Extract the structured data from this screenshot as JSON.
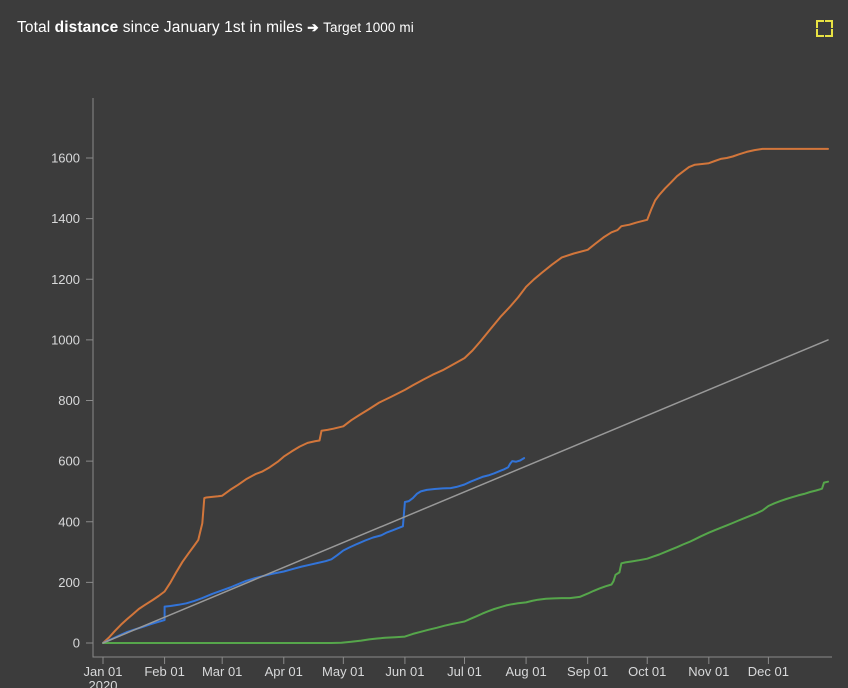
{
  "header": {
    "title_prefix": "Total",
    "title_bold": "distance",
    "title_rest": "since January 1st in miles",
    "arrow": "➔",
    "target_label": "Target 1000 mi",
    "fullscreen_icon": "corner-brackets",
    "fullscreen_icon_color": "#e8e243"
  },
  "colors": {
    "panel_background": "#3c3c3c",
    "axis_line": "#8a8a8a",
    "tick_text": "#d8d9da",
    "title_text": "#ffffff"
  },
  "chart_data": {
    "type": "line",
    "title": "Total distance since January 1st in miles ➔ Target 1000 mi",
    "xlabel": "",
    "ylabel": "",
    "grid": false,
    "legend": "none",
    "x_unit": "day of year 2020",
    "xlim": [
      0,
      365
    ],
    "ylim": [
      0,
      1800
    ],
    "y_ticks": [
      0,
      200,
      400,
      600,
      800,
      1000,
      1200,
      1400,
      1600
    ],
    "x_ticks": [
      {
        "label": "Jan 01",
        "sublabel": "2020",
        "day": 0
      },
      {
        "label": "Feb 01",
        "day": 31
      },
      {
        "label": "Mar 01",
        "day": 60
      },
      {
        "label": "Apr 01",
        "day": 91
      },
      {
        "label": "May 01",
        "day": 121
      },
      {
        "label": "Jun 01",
        "day": 152
      },
      {
        "label": "Jul 01",
        "day": 182
      },
      {
        "label": "Aug 01",
        "day": 213
      },
      {
        "label": "Sep 01",
        "day": 244
      },
      {
        "label": "Oct 01",
        "day": 274
      },
      {
        "label": "Nov 01",
        "day": 305
      },
      {
        "label": "Dec 01",
        "day": 335
      }
    ],
    "series": [
      {
        "name": "cumulative-distance-orange",
        "color": "#d2763b",
        "width": 2,
        "points": [
          [
            0,
            0
          ],
          [
            3,
            18
          ],
          [
            6,
            40
          ],
          [
            9,
            60
          ],
          [
            12,
            78
          ],
          [
            15,
            95
          ],
          [
            18,
            112
          ],
          [
            21,
            125
          ],
          [
            25,
            142
          ],
          [
            28,
            155
          ],
          [
            31,
            170
          ],
          [
            34,
            200
          ],
          [
            37,
            235
          ],
          [
            40,
            268
          ],
          [
            43,
            295
          ],
          [
            46,
            322
          ],
          [
            48,
            340
          ],
          [
            49,
            368
          ],
          [
            50,
            395
          ],
          [
            51,
            478
          ],
          [
            52,
            480
          ],
          [
            58,
            484
          ],
          [
            60,
            486
          ],
          [
            64,
            505
          ],
          [
            68,
            522
          ],
          [
            72,
            540
          ],
          [
            77,
            558
          ],
          [
            80,
            565
          ],
          [
            84,
            580
          ],
          [
            88,
            598
          ],
          [
            91,
            615
          ],
          [
            95,
            632
          ],
          [
            99,
            648
          ],
          [
            103,
            660
          ],
          [
            107,
            666
          ],
          [
            109,
            668
          ],
          [
            110,
            700
          ],
          [
            113,
            703
          ],
          [
            116,
            707
          ],
          [
            121,
            715
          ],
          [
            125,
            735
          ],
          [
            129,
            752
          ],
          [
            134,
            772
          ],
          [
            139,
            793
          ],
          [
            145,
            812
          ],
          [
            152,
            835
          ],
          [
            156,
            850
          ],
          [
            161,
            868
          ],
          [
            166,
            885
          ],
          [
            171,
            900
          ],
          [
            176,
            918
          ],
          [
            182,
            940
          ],
          [
            186,
            965
          ],
          [
            190,
            995
          ],
          [
            195,
            1035
          ],
          [
            200,
            1075
          ],
          [
            205,
            1110
          ],
          [
            209,
            1140
          ],
          [
            213,
            1175
          ],
          [
            217,
            1200
          ],
          [
            221,
            1222
          ],
          [
            226,
            1248
          ],
          [
            231,
            1272
          ],
          [
            237,
            1285
          ],
          [
            244,
            1297
          ],
          [
            248,
            1318
          ],
          [
            252,
            1338
          ],
          [
            256,
            1355
          ],
          [
            259,
            1362
          ],
          [
            261,
            1375
          ],
          [
            265,
            1380
          ],
          [
            269,
            1388
          ],
          [
            274,
            1396
          ],
          [
            276,
            1430
          ],
          [
            278,
            1460
          ],
          [
            280,
            1478
          ],
          [
            283,
            1500
          ],
          [
            286,
            1520
          ],
          [
            289,
            1540
          ],
          [
            292,
            1555
          ],
          [
            295,
            1570
          ],
          [
            298,
            1578
          ],
          [
            301,
            1580
          ],
          [
            305,
            1583
          ],
          [
            308,
            1590
          ],
          [
            311,
            1597
          ],
          [
            314,
            1600
          ],
          [
            317,
            1605
          ],
          [
            320,
            1612
          ],
          [
            324,
            1620
          ],
          [
            328,
            1626
          ],
          [
            332,
            1630
          ],
          [
            365,
            1630
          ]
        ]
      },
      {
        "name": "cumulative-distance-blue",
        "color": "#3274d9",
        "width": 2,
        "points": [
          [
            0,
            0
          ],
          [
            4,
            12
          ],
          [
            8,
            24
          ],
          [
            12,
            36
          ],
          [
            16,
            45
          ],
          [
            20,
            53
          ],
          [
            24,
            62
          ],
          [
            28,
            70
          ],
          [
            31,
            76
          ],
          [
            31,
            120
          ],
          [
            34,
            122
          ],
          [
            38,
            126
          ],
          [
            42,
            131
          ],
          [
            46,
            139
          ],
          [
            50,
            148
          ],
          [
            55,
            162
          ],
          [
            60,
            174
          ],
          [
            64,
            183
          ],
          [
            68,
            194
          ],
          [
            72,
            205
          ],
          [
            76,
            213
          ],
          [
            80,
            220
          ],
          [
            85,
            228
          ],
          [
            91,
            236
          ],
          [
            95,
            243
          ],
          [
            100,
            252
          ],
          [
            104,
            258
          ],
          [
            108,
            264
          ],
          [
            112,
            270
          ],
          [
            115,
            276
          ],
          [
            118,
            290
          ],
          [
            121,
            305
          ],
          [
            124,
            315
          ],
          [
            128,
            327
          ],
          [
            132,
            338
          ],
          [
            136,
            348
          ],
          [
            140,
            355
          ],
          [
            143,
            365
          ],
          [
            146,
            372
          ],
          [
            149,
            380
          ],
          [
            151,
            385
          ],
          [
            152,
            465
          ],
          [
            154,
            468
          ],
          [
            156,
            478
          ],
          [
            158,
            492
          ],
          [
            160,
            500
          ],
          [
            163,
            505
          ],
          [
            167,
            508
          ],
          [
            171,
            510
          ],
          [
            175,
            511
          ],
          [
            178,
            515
          ],
          [
            182,
            523
          ],
          [
            185,
            532
          ],
          [
            188,
            540
          ],
          [
            191,
            548
          ],
          [
            194,
            553
          ],
          [
            197,
            560
          ],
          [
            200,
            568
          ],
          [
            202,
            573
          ],
          [
            204,
            580
          ],
          [
            205,
            592
          ],
          [
            206,
            600
          ],
          [
            208,
            598
          ],
          [
            210,
            602
          ],
          [
            212,
            610
          ]
        ]
      },
      {
        "name": "cumulative-distance-green",
        "color": "#56a64b",
        "width": 2,
        "points": [
          [
            0,
            0
          ],
          [
            115,
            0
          ],
          [
            120,
            1
          ],
          [
            125,
            4
          ],
          [
            130,
            8
          ],
          [
            134,
            12
          ],
          [
            138,
            15
          ],
          [
            142,
            17
          ],
          [
            147,
            19
          ],
          [
            152,
            21
          ],
          [
            156,
            30
          ],
          [
            160,
            37
          ],
          [
            164,
            44
          ],
          [
            168,
            50
          ],
          [
            172,
            57
          ],
          [
            176,
            63
          ],
          [
            179,
            67
          ],
          [
            182,
            71
          ],
          [
            185,
            80
          ],
          [
            188,
            88
          ],
          [
            191,
            97
          ],
          [
            194,
            105
          ],
          [
            197,
            112
          ],
          [
            200,
            118
          ],
          [
            203,
            124
          ],
          [
            206,
            128
          ],
          [
            209,
            131
          ],
          [
            213,
            134
          ],
          [
            216,
            139
          ],
          [
            219,
            143
          ],
          [
            223,
            146
          ],
          [
            227,
            147
          ],
          [
            231,
            148
          ],
          [
            235,
            148
          ],
          [
            240,
            152
          ],
          [
            244,
            163
          ],
          [
            247,
            172
          ],
          [
            250,
            180
          ],
          [
            253,
            187
          ],
          [
            256,
            193
          ],
          [
            257,
            204
          ],
          [
            258,
            225
          ],
          [
            260,
            233
          ],
          [
            261,
            263
          ],
          [
            263,
            266
          ],
          [
            266,
            269
          ],
          [
            270,
            273
          ],
          [
            274,
            278
          ],
          [
            277,
            285
          ],
          [
            280,
            292
          ],
          [
            283,
            300
          ],
          [
            286,
            308
          ],
          [
            289,
            316
          ],
          [
            292,
            325
          ],
          [
            295,
            333
          ],
          [
            298,
            342
          ],
          [
            301,
            352
          ],
          [
            305,
            364
          ],
          [
            308,
            372
          ],
          [
            311,
            380
          ],
          [
            314,
            388
          ],
          [
            317,
            396
          ],
          [
            320,
            404
          ],
          [
            323,
            412
          ],
          [
            326,
            420
          ],
          [
            329,
            428
          ],
          [
            332,
            437
          ],
          [
            335,
            452
          ],
          [
            338,
            461
          ],
          [
            341,
            468
          ],
          [
            344,
            475
          ],
          [
            347,
            481
          ],
          [
            350,
            487
          ],
          [
            353,
            492
          ],
          [
            356,
            498
          ],
          [
            359,
            503
          ],
          [
            361,
            507
          ],
          [
            362,
            509
          ],
          [
            363,
            529
          ],
          [
            365,
            532
          ]
        ]
      },
      {
        "name": "target-1000-mi",
        "color": "#999999",
        "width": 1.5,
        "points": [
          [
            0,
            0
          ],
          [
            365,
            1000
          ]
        ]
      }
    ]
  }
}
